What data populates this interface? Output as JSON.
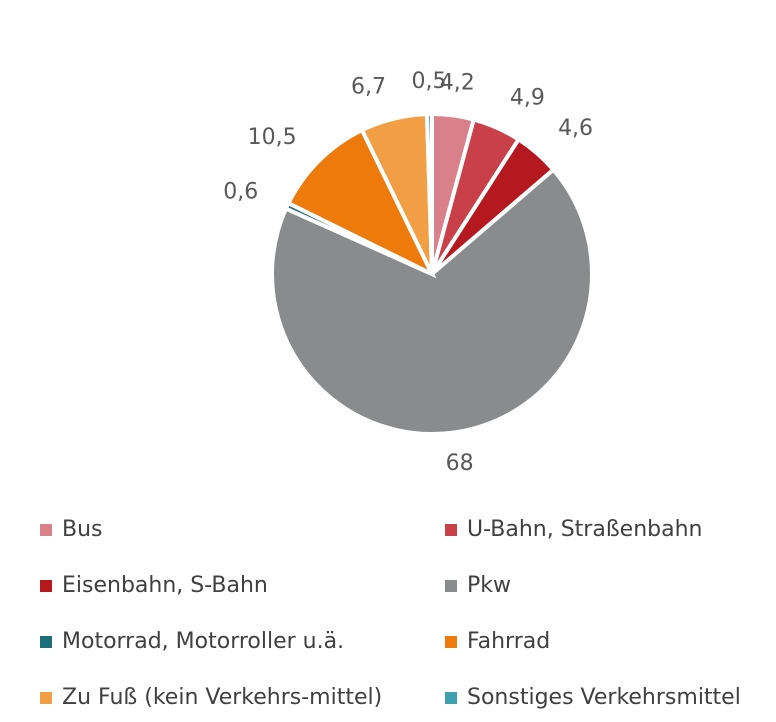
{
  "chart_data": {
    "type": "pie",
    "categories": [
      "Bus",
      "U-Bahn, Straßenbahn",
      "Eisenbahn, S-Bahn",
      "Pkw",
      "Motorrad, Motorroller u.ä.",
      "Fahrrad",
      "Zu Fuß (kein Verkehrs-mittel)",
      "Sonstiges Verkehrsmittel"
    ],
    "values": [
      4.2,
      4.9,
      4.6,
      68,
      0.6,
      10.5,
      6.7,
      0.5
    ],
    "value_labels": [
      "4,2",
      "4,9",
      "4,6",
      "68",
      "0,6",
      "10,5",
      "6,7",
      "0,5"
    ],
    "colors": [
      "#d9808a",
      "#c9404a",
      "#b5181f",
      "#8a8b8d",
      "#1a6f7a",
      "#ee7a0c",
      "#f29e45",
      "#3fa0ad"
    ],
    "legend": "bottom"
  }
}
